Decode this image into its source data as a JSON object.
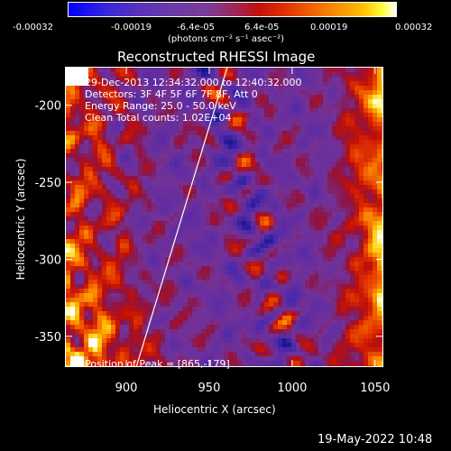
{
  "colorbar": {
    "ticks": [
      "-0.00032",
      "-0.00019",
      "-6.4e-05",
      "6.4e-05",
      "0.00019",
      "0.00032"
    ],
    "unit_label": "(photons cm⁻² s⁻¹ asec⁻²)"
  },
  "chart_data": {
    "type": "heatmap",
    "title": "Reconstructed RHESSI Image",
    "xlabel": "Heliocentric X (arcsec)",
    "ylabel": "Heliocentric Y (arcsec)",
    "xlim": [
      863,
      1055
    ],
    "ylim": [
      -370,
      -175
    ],
    "x_ticks": [
      900,
      950,
      1000,
      1050
    ],
    "y_ticks": [
      -200,
      -250,
      -300,
      -350
    ],
    "annotations": [
      "29-Dec-2013 12:34:32.000 to 12:40:32.000",
      "Detectors: 3F 4F 5F 6F 7F 8F, Att 0",
      "Energy Range: 25.0 - 50.0 keV",
      "Clean    Total counts: 1.02E+04"
    ],
    "peak_label": "Position of Peak = [865,-179]",
    "limb_line": [
      [
        906,
        -370
      ],
      [
        961,
        -175
      ]
    ]
  },
  "footer": {
    "timestamp": "19-May-2022 10:48"
  }
}
